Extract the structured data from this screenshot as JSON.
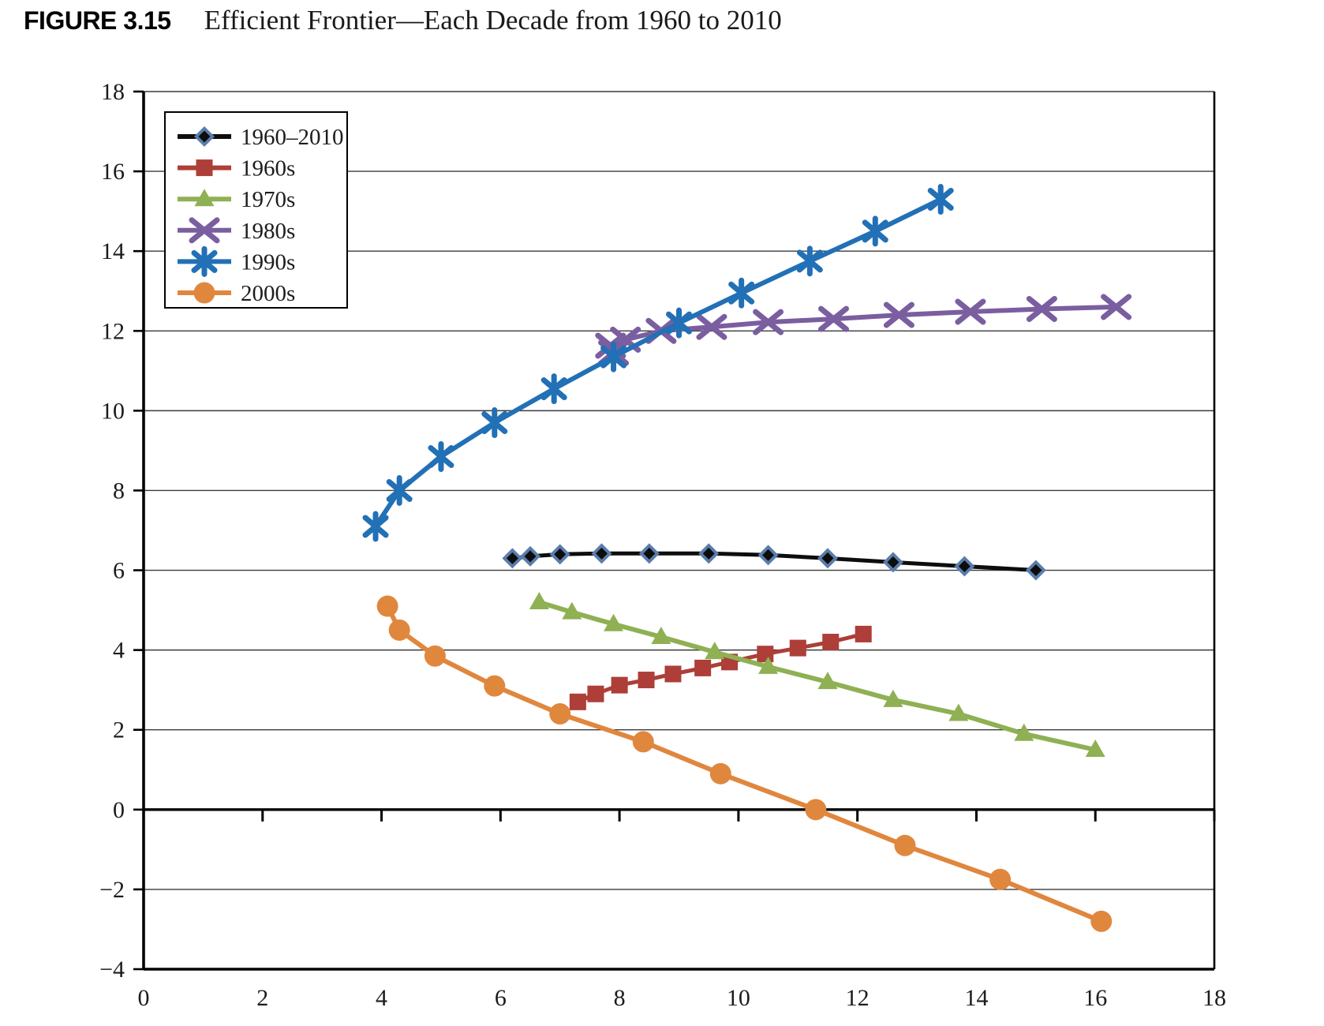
{
  "figure": {
    "label": "FIGURE 3.15",
    "title": "Efficient Frontier—Each Decade from 1960 to 2010"
  },
  "chart_data": {
    "type": "line",
    "title": "Efficient Frontier—Each Decade from 1960 to 2010",
    "xlabel": "",
    "ylabel": "",
    "grid": "horizontal",
    "legend_position": "top-left",
    "x_axis": {
      "min": 0,
      "max": 18,
      "step": 2,
      "tick_labels": [
        "0",
        "2",
        "4",
        "6",
        "8",
        "10",
        "12",
        "14",
        "16",
        "18"
      ]
    },
    "y_axis": {
      "min": -4,
      "max": 18,
      "step": 2,
      "tick_labels_top_down": [
        "18",
        "16",
        "14",
        "12",
        "10",
        "8",
        "6",
        "4",
        "2",
        "0",
        "−2",
        "−4"
      ]
    },
    "series": [
      {
        "name": "1960–2010",
        "marker": "diamond",
        "color": "#0d0d0d",
        "marker_edge": "#5a7dab",
        "points": [
          [
            6.2,
            6.3
          ],
          [
            6.5,
            6.35
          ],
          [
            7.0,
            6.4
          ],
          [
            7.7,
            6.42
          ],
          [
            8.5,
            6.42
          ],
          [
            9.5,
            6.42
          ],
          [
            10.5,
            6.38
          ],
          [
            11.5,
            6.3
          ],
          [
            12.6,
            6.2
          ],
          [
            13.8,
            6.1
          ],
          [
            15.0,
            6.0
          ]
        ]
      },
      {
        "name": "1960s",
        "marker": "square",
        "color": "#ad3e38",
        "points": [
          [
            7.3,
            2.7
          ],
          [
            7.6,
            2.9
          ],
          [
            8.0,
            3.12
          ],
          [
            8.45,
            3.25
          ],
          [
            8.9,
            3.4
          ],
          [
            9.4,
            3.55
          ],
          [
            9.85,
            3.7
          ],
          [
            10.45,
            3.9
          ],
          [
            11.0,
            4.05
          ],
          [
            11.55,
            4.2
          ],
          [
            12.1,
            4.4
          ]
        ]
      },
      {
        "name": "1970s",
        "marker": "triangle",
        "color": "#8fb053",
        "points": [
          [
            6.65,
            5.2
          ],
          [
            7.2,
            4.95
          ],
          [
            7.9,
            4.65
          ],
          [
            8.7,
            4.33
          ],
          [
            9.6,
            3.95
          ],
          [
            10.5,
            3.58
          ],
          [
            11.5,
            3.2
          ],
          [
            12.6,
            2.75
          ],
          [
            13.7,
            2.4
          ],
          [
            14.8,
            1.9
          ],
          [
            16.0,
            1.5
          ]
        ]
      },
      {
        "name": "1980s",
        "marker": "x",
        "color": "#7a5ea0",
        "points": [
          [
            7.9,
            11.45
          ],
          [
            7.85,
            11.63
          ],
          [
            8.1,
            11.78
          ],
          [
            8.7,
            12.0
          ],
          [
            9.55,
            12.1
          ],
          [
            10.5,
            12.22
          ],
          [
            11.6,
            12.3
          ],
          [
            12.7,
            12.4
          ],
          [
            13.9,
            12.48
          ],
          [
            15.1,
            12.55
          ],
          [
            16.35,
            12.6
          ]
        ]
      },
      {
        "name": "1990s",
        "marker": "asterisk",
        "color": "#2270b6",
        "points": [
          [
            3.9,
            7.1
          ],
          [
            4.3,
            8.0
          ],
          [
            5.0,
            8.85
          ],
          [
            5.9,
            9.7
          ],
          [
            6.9,
            10.55
          ],
          [
            7.9,
            11.35
          ],
          [
            9.0,
            12.2
          ],
          [
            10.05,
            12.95
          ],
          [
            11.2,
            13.75
          ],
          [
            12.3,
            14.5
          ],
          [
            13.4,
            15.3
          ]
        ]
      },
      {
        "name": "2000s",
        "marker": "circle",
        "color": "#e0873e",
        "points": [
          [
            4.1,
            5.1
          ],
          [
            4.3,
            4.5
          ],
          [
            4.9,
            3.85
          ],
          [
            5.9,
            3.1
          ],
          [
            7.0,
            2.4
          ],
          [
            8.4,
            1.7
          ],
          [
            9.7,
            0.9
          ],
          [
            11.3,
            0.0
          ],
          [
            12.8,
            -0.9
          ],
          [
            14.4,
            -1.75
          ],
          [
            16.1,
            -2.8
          ]
        ]
      }
    ]
  }
}
